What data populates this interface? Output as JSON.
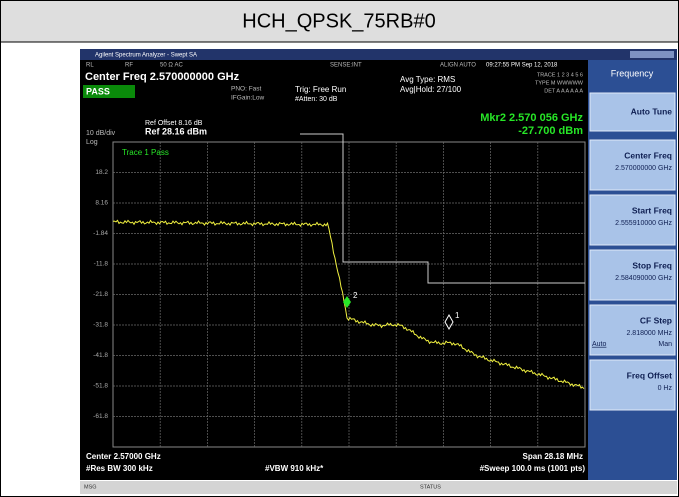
{
  "header": {
    "title": "HCH_QPSK_75RB#0"
  },
  "window": {
    "title": "Agilent Spectrum Analyzer - Swept SA"
  },
  "status_row": {
    "rl": "RL",
    "rf": "RF",
    "input": "50 Ω AC",
    "sense": "SENSE:INT",
    "align": "ALIGN AUTO",
    "time": "09:27:55 PM Sep 12, 2018"
  },
  "info": {
    "center": "Center Freq 2.570000000 GHz",
    "pass": "PASS",
    "pno": "PNO: Fast",
    "ifgain": "IFGain:Low",
    "trig": "Trig: Free Run",
    "atten": "#Atten: 30 dB",
    "avg_type": "Avg Type: RMS",
    "avg_hold": "Avg|Hold: 27/100",
    "trace": "TRACE 1 2 3 4 5 6",
    "type": "TYPE M WWWWW",
    "det": "DET A A A A A A"
  },
  "plot": {
    "ref_offset": "Ref Offset 8.16 dB",
    "scale": "10 dB/div",
    "ref": "Ref 28.16 dBm",
    "log": "Log",
    "marker": "Mkr2 2.570 056 GHz",
    "marker_value": "-27.700 dBm",
    "trace_status": "Trace 1 Pass",
    "marker_labels": [
      "2",
      "1"
    ],
    "y_labels": [
      "18.2",
      "8.16",
      "-1.84",
      "-11.8",
      "-21.8",
      "-31.8",
      "-41.8",
      "-51.8",
      "-61.8"
    ]
  },
  "footer": {
    "center": "Center 2.57000 GHz",
    "span": "Span 28.18 MHz",
    "rbw": "#Res BW 300 kHz",
    "vbw": "#VBW 910 kHz*",
    "sweep": "#Sweep  100.0 ms (1001 pts)"
  },
  "softkeys": {
    "menu": "Frequency",
    "items": [
      {
        "label": "Auto Tune"
      },
      {
        "label": "Center Freq",
        "value": "2.570000000 GHz"
      },
      {
        "label": "Start Freq",
        "value": "2.555910000 GHz"
      },
      {
        "label": "Stop Freq",
        "value": "2.584090000 GHz"
      },
      {
        "label": "CF Step",
        "value": "2.818000 MHz",
        "auto": "Auto",
        "man": "Man"
      },
      {
        "label": "Freq Offset",
        "value": "0 Hz"
      }
    ]
  },
  "statusbar": {
    "msg": "MSG",
    "status": "STATUS"
  }
}
